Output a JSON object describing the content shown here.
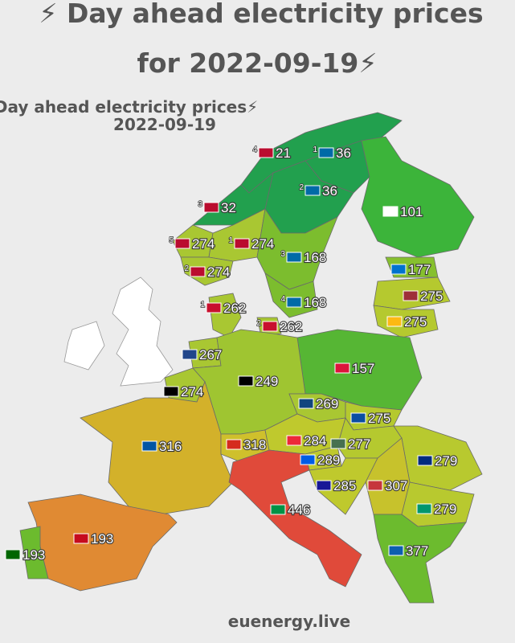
{
  "header": {
    "title_lines": [
      "⚡ Day ahead electricity prices",
      "for 2022-09-19⚡"
    ]
  },
  "map": {
    "subtitle_lines": [
      "⚡Day ahead electricity prices⚡",
      "2022-09-19"
    ],
    "regions": [
      {
        "zone": "4",
        "value": 21,
        "color": "#22a04e"
      },
      {
        "zone": "1",
        "value": 36,
        "color": "#22a04e"
      },
      {
        "zone": "2",
        "value": 36,
        "color": "#22a04e"
      },
      {
        "value": 101,
        "color": "#3cb43a"
      },
      {
        "zone": "3",
        "value": 32,
        "color": "#22a04e"
      },
      {
        "zone": "5",
        "value": 274,
        "color": "#a9c732"
      },
      {
        "zone": "1",
        "value": 274,
        "color": "#a9c732"
      },
      {
        "zone": "3",
        "value": 168,
        "color": "#7cbd2e"
      },
      {
        "zone": "2",
        "value": 274,
        "color": "#a9c732"
      },
      {
        "value": 177,
        "color": "#86c02e"
      },
      {
        "value": 275,
        "color": "#b5c92f"
      },
      {
        "zone": "4",
        "value": 168,
        "color": "#7cbd2e"
      },
      {
        "zone": "1",
        "value": 262,
        "color": "#a9c732"
      },
      {
        "value": 275,
        "color": "#b5c92f"
      },
      {
        "zone": "2",
        "value": 262,
        "color": "#a9c732"
      },
      {
        "value": 267,
        "color": "#a9c732"
      },
      {
        "value": 157,
        "color": "#56b634"
      },
      {
        "value": 249,
        "color": "#9fc531"
      },
      {
        "value": 274,
        "color": "#a9c732"
      },
      {
        "value": 269,
        "color": "#a9c732"
      },
      {
        "value": 275,
        "color": "#b5c92f"
      },
      {
        "value": 316,
        "color": "#d3b12a"
      },
      {
        "value": 318,
        "color": "#cfc02c"
      },
      {
        "value": 284,
        "color": "#bfc92d"
      },
      {
        "value": 277,
        "color": "#b5c92f"
      },
      {
        "value": 289,
        "color": "#bfc92d"
      },
      {
        "value": 279,
        "color": "#b8c92f"
      },
      {
        "value": 285,
        "color": "#bfc92d"
      },
      {
        "value": 307,
        "color": "#c7c22c"
      },
      {
        "value": 446,
        "color": "#e04a3a"
      },
      {
        "value": 279,
        "color": "#b8c92f"
      },
      {
        "value": 193,
        "color": "#6cbb2e"
      },
      {
        "value": 377,
        "color": "#e08a33"
      },
      {
        "value": 193,
        "color": "#6cbb2e"
      }
    ]
  },
  "footer": {
    "site": "euenergy.live"
  }
}
